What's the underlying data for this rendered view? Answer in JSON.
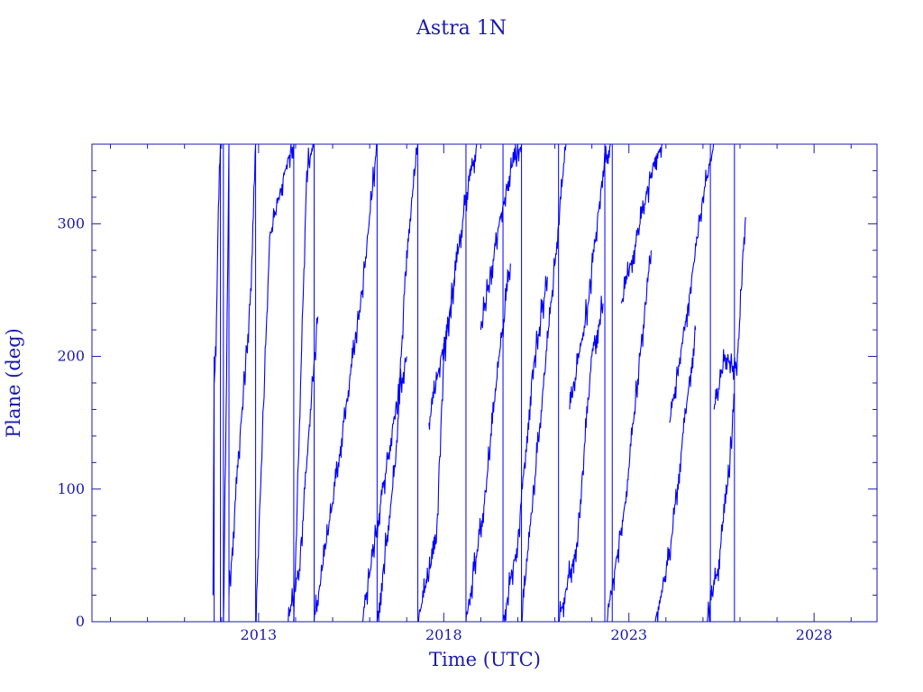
{
  "chart_data": {
    "type": "scatter",
    "title": "Astra 1N",
    "xlabel": "Time (UTC)",
    "ylabel": "Plane (deg)",
    "xlim": [
      2008.5,
      2029.7
    ],
    "ylim": [
      0,
      360
    ],
    "x_ticks": [
      {
        "value": 2013,
        "label": "2013"
      },
      {
        "value": 2018,
        "label": "2018"
      },
      {
        "value": 2023,
        "label": "2023"
      },
      {
        "value": 2028,
        "label": "2028"
      }
    ],
    "y_ticks": [
      {
        "value": 0,
        "label": "0"
      },
      {
        "value": 100,
        "label": "100"
      },
      {
        "value": 200,
        "label": "200"
      },
      {
        "value": 300,
        "label": "300"
      }
    ],
    "grid": false,
    "colors": {
      "axes": "#1a1ab0",
      "data": "#0000ff"
    },
    "series": [
      {
        "segments": [
          {
            "x": [
              2011.77,
              2011.8
            ],
            "y": [
              20,
              200
            ]
          },
          {
            "x": [
              2011.8,
              2011.85,
              2011.9,
              2011.97
            ],
            "y": [
              180,
              200,
              290,
              360
            ]
          },
          {
            "x": [
              2012.05,
              2012.12,
              2012.2
            ],
            "y": [
              0,
              150,
              360
            ]
          },
          {
            "x": [
              2012.2,
              2012.5,
              2012.8,
              2012.92
            ],
            "y": [
              20,
              140,
              250,
              360
            ]
          },
          {
            "x": [
              2012.92,
              2013.3,
              2013.8,
              2013.95
            ],
            "y": [
              0,
              290,
              350,
              360
            ]
          },
          {
            "x": [
              2013.8,
              2014.1,
              2014.4,
              2014.6
            ],
            "y": [
              0,
              40,
              160,
              230
            ]
          },
          {
            "x": [
              2013.95,
              2014.3,
              2014.5
            ],
            "y": [
              0,
              340,
              360
            ]
          },
          {
            "x": [
              2014.5,
              2015.0,
              2015.8,
              2016.2
            ],
            "y": [
              0,
              90,
              250,
              360
            ]
          },
          {
            "x": [
              2015.8,
              2016.3,
              2016.7,
              2017.0
            ],
            "y": [
              0,
              90,
              160,
              200
            ]
          },
          {
            "x": [
              2016.2,
              2016.7,
              2017.0,
              2017.3
            ],
            "y": [
              0,
              120,
              280,
              360
            ]
          },
          {
            "x": [
              2017.3,
              2017.8,
              2018.0,
              2018.3
            ],
            "y": [
              0,
              60,
              200,
              260
            ]
          },
          {
            "x": [
              2017.6,
              2018.2,
              2018.6,
              2018.9
            ],
            "y": [
              150,
              240,
              320,
              360
            ]
          },
          {
            "x": [
              2018.6,
              2019.1,
              2019.5,
              2019.8
            ],
            "y": [
              0,
              90,
              200,
              270
            ]
          },
          {
            "x": [
              2019.0,
              2019.5,
              2019.8,
              2020.1
            ],
            "y": [
              220,
              300,
              340,
              360
            ]
          },
          {
            "x": [
              2019.6,
              2020.0,
              2020.4,
              2020.8
            ],
            "y": [
              0,
              60,
              190,
              260
            ]
          },
          {
            "x": [
              2020.1,
              2020.6,
              2021.1,
              2021.3
            ],
            "y": [
              0,
              150,
              300,
              360
            ]
          },
          {
            "x": [
              2021.1,
              2021.6,
              2022.0,
              2022.3
            ],
            "y": [
              0,
              60,
              200,
              240
            ]
          },
          {
            "x": [
              2021.4,
              2021.9,
              2022.3,
              2022.5
            ],
            "y": [
              160,
              240,
              340,
              360
            ]
          },
          {
            "x": [
              2022.4,
              2022.9,
              2023.3,
              2023.6
            ],
            "y": [
              0,
              90,
              200,
              280
            ]
          },
          {
            "x": [
              2022.8,
              2023.3,
              2023.7,
              2023.9
            ],
            "y": [
              240,
              300,
              350,
              360
            ]
          },
          {
            "x": [
              2023.7,
              2024.1,
              2024.5,
              2024.8
            ],
            "y": [
              0,
              50,
              150,
              220
            ]
          },
          {
            "x": [
              2024.1,
              2024.6,
              2025.0,
              2025.3
            ],
            "y": [
              150,
              240,
              320,
              360
            ]
          },
          {
            "x": [
              2025.1,
              2025.4,
              2025.7,
              2025.85
            ],
            "y": [
              0,
              40,
              110,
              170
            ]
          },
          {
            "x": [
              2025.3,
              2025.6,
              2025.9,
              2026.0
            ],
            "y": [
              160,
              200,
              190,
              230
            ]
          },
          {
            "x": [
              2026.0,
              2026.08,
              2026.15
            ],
            "y": [
              230,
              280,
              305
            ]
          }
        ],
        "drops": [
          {
            "x": 2011.8,
            "y": 200
          },
          {
            "x": 2011.97,
            "y": 360
          },
          {
            "x": 2012.05,
            "y": 360
          },
          {
            "x": 2012.2,
            "y": 360
          },
          {
            "x": 2012.92,
            "y": 360
          },
          {
            "x": 2013.95,
            "y": 360
          },
          {
            "x": 2014.5,
            "y": 360
          },
          {
            "x": 2016.2,
            "y": 360
          },
          {
            "x": 2017.3,
            "y": 360
          },
          {
            "x": 2018.6,
            "y": 360
          },
          {
            "x": 2019.6,
            "y": 360
          },
          {
            "x": 2020.1,
            "y": 360
          },
          {
            "x": 2021.1,
            "y": 360
          },
          {
            "x": 2022.35,
            "y": 360
          },
          {
            "x": 2022.55,
            "y": 360
          },
          {
            "x": 2025.2,
            "y": 360
          },
          {
            "x": 2025.85,
            "y": 360
          }
        ]
      }
    ]
  }
}
